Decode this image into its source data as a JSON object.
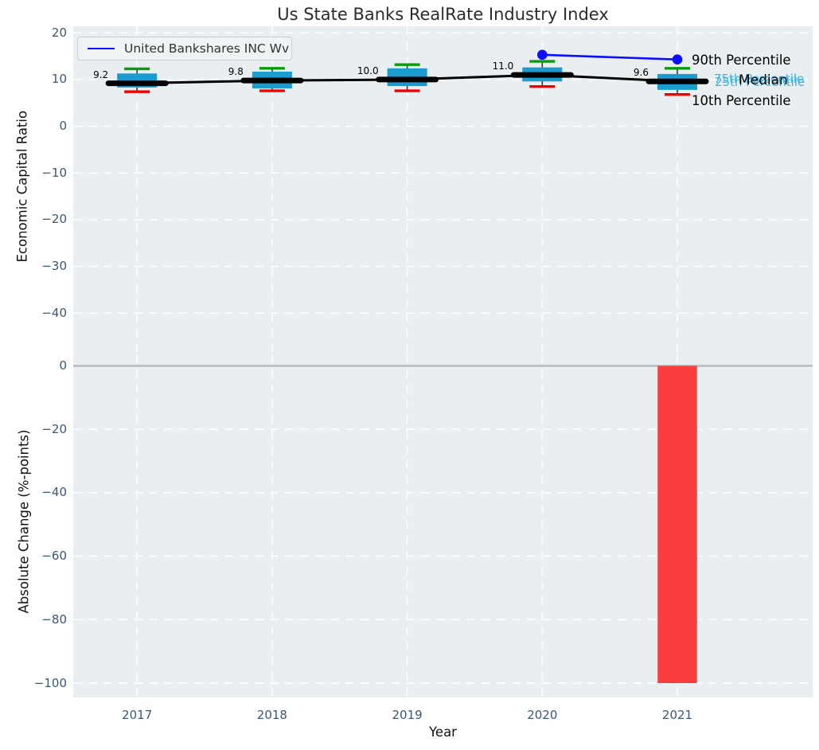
{
  "title": "Us State Banks RealRate Industry Index",
  "legend": {
    "label": "United Bankshares INC Wv"
  },
  "annotations": {
    "p90": "90th Percentile",
    "p75": "75th Percentile",
    "p25": "25th Percentile",
    "median": "Median",
    "p10": "10th Percentile"
  },
  "colors": {
    "box_fill": "#1c9bcf",
    "company_line": "#0d0dff",
    "bar_negative": "#fa3d3d",
    "whisker_high_cap": "#0a9b0a",
    "whisker_low_cap": "#f40000",
    "whisker_stem": "#3a3a3a",
    "median_line": "#000000",
    "percentile_label": "#35b5e5",
    "plot_background": "#e9eef0",
    "grid": "#ffffff",
    "tick_label": "#3e5871",
    "zero_line": "#b2b5b8"
  },
  "chart_data": [
    {
      "type": "boxplot",
      "title": "Us State Banks RealRate Industry Index",
      "ylabel": "Economic Capital Ratio",
      "categories": [
        "2017",
        "2018",
        "2019",
        "2020",
        "2021"
      ],
      "yticks": [
        "20",
        "10",
        "0",
        "−10",
        "−20",
        "−30",
        "−40"
      ],
      "ytick_values": [
        20,
        10,
        0,
        -10,
        -20,
        -30,
        -40
      ],
      "ylim": [
        -48.8,
        21.4
      ],
      "grid": true,
      "legend_position": "upper left",
      "boxes": [
        {
          "year": "2017",
          "p10": 7.4,
          "p25": 8.3,
          "median": 9.2,
          "p75": 11.3,
          "p90": 12.3
        },
        {
          "year": "2018",
          "p10": 7.6,
          "p25": 8.1,
          "median": 9.8,
          "p75": 11.7,
          "p90": 12.4
        },
        {
          "year": "2019",
          "p10": 7.6,
          "p25": 8.6,
          "median": 10.0,
          "p75": 12.4,
          "p90": 13.2
        },
        {
          "year": "2020",
          "p10": 8.5,
          "p25": 9.6,
          "median": 11.0,
          "p75": 12.6,
          "p90": 13.9
        },
        {
          "year": "2021",
          "p10": 6.8,
          "p25": 7.8,
          "median": 9.6,
          "p75": 11.2,
          "p90": 12.4
        }
      ],
      "median_series": [
        9.2,
        9.8,
        10.0,
        11.0,
        9.6
      ],
      "median_labels": [
        "9.2",
        "9.8",
        "10.0",
        "11.0",
        "9.6"
      ],
      "company_series": {
        "name": "United Bankshares INC Wv",
        "points": [
          {
            "x": "2020",
            "y": 15.3
          },
          {
            "x": "2021",
            "y": 14.3
          }
        ]
      }
    },
    {
      "type": "bar",
      "ylabel": "Absolute Change (%-points)",
      "xlabel": "Year",
      "categories": [
        "2017",
        "2018",
        "2019",
        "2020",
        "2021"
      ],
      "yticks": [
        "0",
        "−20",
        "−40",
        "−60",
        "−80",
        "−100"
      ],
      "ytick_values": [
        0,
        -20,
        -40,
        -60,
        -80,
        -100
      ],
      "ylim": [
        -104.6,
        3.6
      ],
      "values": [
        0,
        0,
        0,
        0,
        -100
      ],
      "grid": true
    }
  ]
}
